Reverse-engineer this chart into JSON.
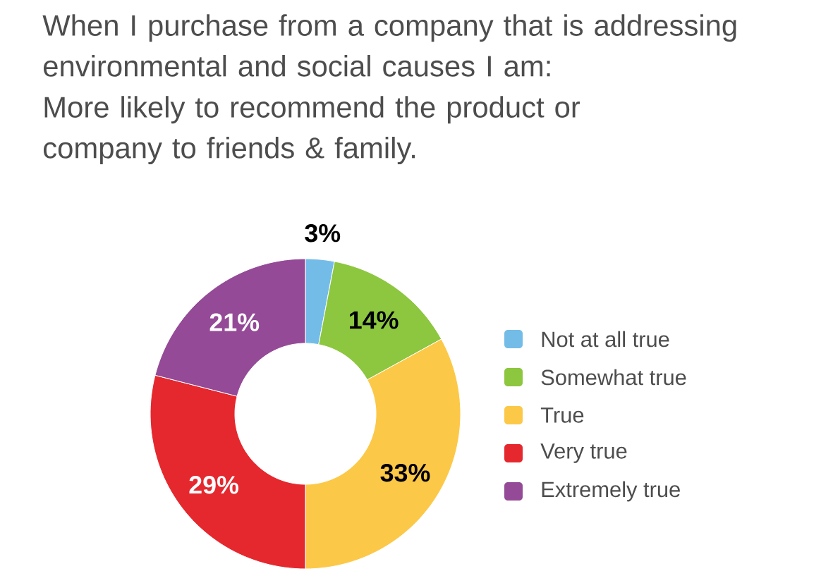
{
  "chart_data": {
    "type": "donut",
    "title": "When I purchase from a company that is addressing environmental and social causes I am:",
    "subtitle": "More likely to recommend the product or company to friends & family.",
    "categories": [
      "Not at all true",
      "Somewhat true",
      "True",
      "Very true",
      "Extremely true"
    ],
    "values": [
      3,
      14,
      33,
      29,
      21
    ],
    "colors": [
      "#74bce8",
      "#8dc63f",
      "#fcc847",
      "#e5282e",
      "#944a97"
    ],
    "value_labels": [
      "3%",
      "14%",
      "33%",
      "29%",
      "21%"
    ],
    "legend": "right"
  }
}
